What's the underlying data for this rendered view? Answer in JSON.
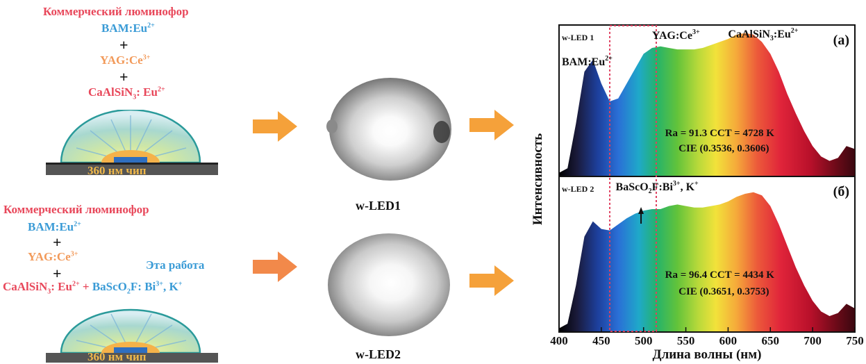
{
  "top_left": {
    "heading": "Коммерческий люминофор",
    "bam": "BAM:Eu",
    "bam_sup": "2+",
    "yag": "YAG:Ce",
    "yag_sup": "3+",
    "casn_main": "CaAlSiN",
    "casn_sub": "3",
    "casn_rest": ": Eu",
    "casn_sup": "2+",
    "plus": "+",
    "chip": "360 нм чип"
  },
  "bottom_left": {
    "heading": "Коммерческий люминофор",
    "bam": "BAM:Eu",
    "bam_sup": "2+",
    "yag": "YAG:Ce",
    "yag_sup": "3+",
    "this_work": "Эта работа",
    "casn_main": "CaAlSiN",
    "casn_sub": "3",
    "casn_rest": ": Eu",
    "casn_sup": "2+",
    "plus_mid": " + ",
    "basco_main": "BaScO",
    "basco_sub": "2",
    "basco_rest": "F: Bi",
    "basco_sup": "3+",
    "basco_k": ", K",
    "basco_ksup": "+",
    "plus": "+",
    "chip": "360 нм чип"
  },
  "middle": {
    "label_1": "w-LED1",
    "label_2": "w-LED2"
  },
  "colors": {
    "arrow": "#f5a13a",
    "arrow2": "#f2894a",
    "heading": "#e8475a",
    "bam": "#3a9bd6",
    "yag": "#f29a5a"
  },
  "chart_data": {
    "type": "area",
    "xlabel": "Длина волны (нм)",
    "ylabel": "Интенсивность",
    "xlim": [
      400,
      750
    ],
    "x_ticks": [
      "400",
      "450",
      "500",
      "550",
      "600",
      "650",
      "700",
      "750"
    ],
    "highlight_range": [
      460,
      515
    ],
    "panels": [
      {
        "panel_label": "(a)",
        "series_name": "w-LED 1",
        "annotations": {
          "bam": "BAM:Eu",
          "bam_sup": "2+",
          "yag": "YAG:Ce",
          "yag_sup": "3+",
          "casn_main": "CaAlSiN",
          "casn_sub": "3",
          "casn_rest": ":Eu",
          "casn_sup": "2+",
          "ra_cct": "Ra = 91.3  CCT = 4728 K",
          "cie": "CIE (0.3536, 0.3606)"
        },
        "x": [
          400,
          410,
          420,
          430,
          440,
          450,
          460,
          470,
          480,
          490,
          500,
          510,
          520,
          530,
          540,
          550,
          560,
          570,
          580,
          590,
          600,
          610,
          620,
          630,
          640,
          650,
          660,
          670,
          680,
          690,
          700,
          710,
          720,
          730,
          740,
          750
        ],
        "y": [
          0.02,
          0.05,
          0.35,
          0.7,
          0.78,
          0.62,
          0.5,
          0.52,
          0.62,
          0.72,
          0.82,
          0.86,
          0.87,
          0.86,
          0.85,
          0.85,
          0.85,
          0.86,
          0.88,
          0.9,
          0.92,
          0.95,
          0.96,
          0.95,
          0.9,
          0.82,
          0.7,
          0.55,
          0.42,
          0.3,
          0.2,
          0.13,
          0.1,
          0.12,
          0.2,
          0.18
        ]
      },
      {
        "panel_label": "(б)",
        "series_name": "w-LED 2",
        "annotations": {
          "basco_main": "BaScO",
          "basco_sub": "2",
          "basco_rest": "F:Bi",
          "basco_sup": "3+",
          "basco_k": ", K",
          "basco_ksup": "+",
          "ra_cct": "Ra = 96.4  CCT = 4434 K",
          "cie": "CIE (0.3651, 0.3753)"
        },
        "x": [
          400,
          410,
          420,
          430,
          440,
          450,
          460,
          470,
          480,
          490,
          500,
          510,
          520,
          530,
          540,
          550,
          560,
          570,
          580,
          590,
          600,
          610,
          620,
          630,
          640,
          650,
          660,
          670,
          680,
          690,
          700,
          710,
          720,
          730,
          740,
          750
        ],
        "y": [
          0.02,
          0.05,
          0.3,
          0.62,
          0.72,
          0.67,
          0.66,
          0.7,
          0.74,
          0.77,
          0.79,
          0.8,
          0.8,
          0.82,
          0.83,
          0.82,
          0.81,
          0.81,
          0.82,
          0.83,
          0.85,
          0.88,
          0.9,
          0.91,
          0.89,
          0.82,
          0.7,
          0.56,
          0.42,
          0.3,
          0.2,
          0.13,
          0.1,
          0.12,
          0.18,
          0.15
        ]
      }
    ]
  }
}
